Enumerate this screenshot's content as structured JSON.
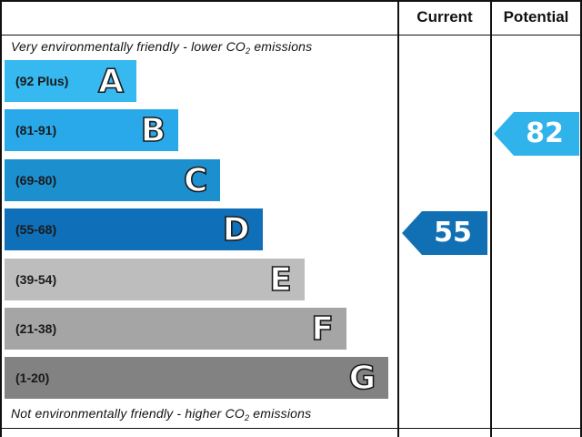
{
  "headers": {
    "current": "Current",
    "potential": "Potential"
  },
  "top_caption": {
    "text": "Very environmentally friendly - lower CO",
    "sub": "2",
    "tail": " emissions"
  },
  "bottom_caption": {
    "text": "Not environmentally friendly - higher CO",
    "sub": "2",
    "tail": " emissions"
  },
  "chart_data": {
    "type": "bar",
    "categories": [
      "A",
      "B",
      "C",
      "D",
      "E",
      "F",
      "G"
    ],
    "bands": [
      {
        "letter": "A",
        "range": "(92 Plus)",
        "min": 92,
        "max": null,
        "color": "#36b8f0"
      },
      {
        "letter": "B",
        "range": "(81-91)",
        "min": 81,
        "max": 91,
        "color": "#2aa9ea"
      },
      {
        "letter": "C",
        "range": "(69-80)",
        "min": 69,
        "max": 80,
        "color": "#1c8fcf"
      },
      {
        "letter": "D",
        "range": "(55-68)",
        "min": 55,
        "max": 68,
        "color": "#0f6fb8"
      },
      {
        "letter": "E",
        "range": "(39-54)",
        "min": 39,
        "max": 54,
        "color": "#bdbdbd"
      },
      {
        "letter": "F",
        "range": "(21-38)",
        "min": 21,
        "max": 38,
        "color": "#a5a5a5"
      },
      {
        "letter": "G",
        "range": "(1-20)",
        "min": 1,
        "max": 20,
        "color": "#828282"
      }
    ],
    "current": {
      "value": 55,
      "band": "D",
      "color": "#1170b4"
    },
    "potential": {
      "value": 82,
      "band": "B",
      "color": "#30b2ea"
    }
  }
}
